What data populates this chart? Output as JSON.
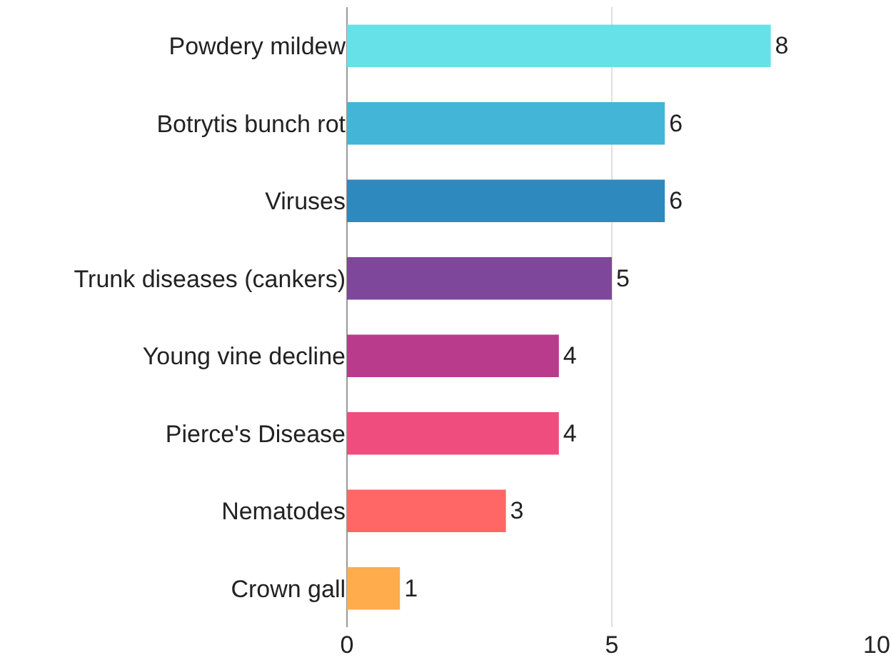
{
  "chart_data": {
    "type": "bar",
    "orientation": "horizontal",
    "categories": [
      "Powdery mildew",
      "Botrytis bunch rot",
      "Viruses",
      "Trunk diseases (cankers)",
      "Young vine decline",
      "Pierce's Disease",
      "Nematodes",
      "Crown gall"
    ],
    "values": [
      8,
      6,
      6,
      5,
      4,
      4,
      3,
      1
    ],
    "colors": [
      "#67e1e8",
      "#43b5d7",
      "#2e89be",
      "#7f479b",
      "#b93b8b",
      "#ef4d7e",
      "#ff6666",
      "#ffac4c"
    ],
    "xlim": [
      0,
      10
    ],
    "xticks": [
      0,
      5,
      10
    ],
    "grid": "x",
    "data_labels": true
  }
}
